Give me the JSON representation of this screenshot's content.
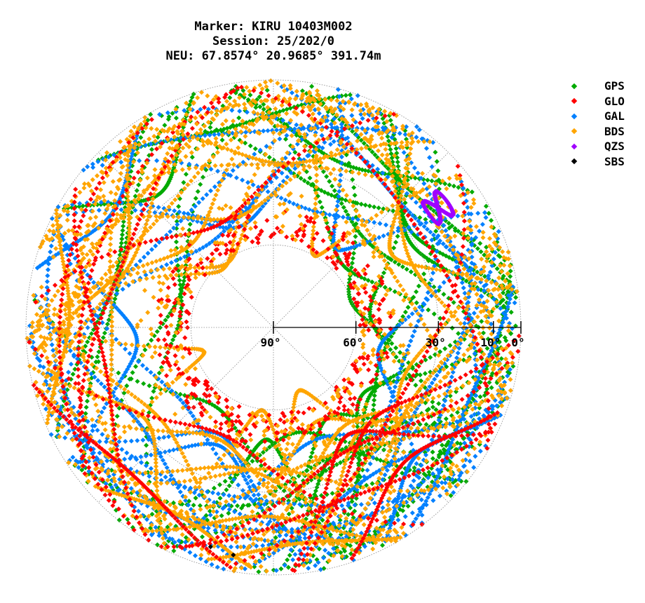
{
  "title_lines": [
    "Marker: KIRU 10403M002",
    "Session: 25/202/0",
    "NEU: 67.8574° 20.9685° 391.74m"
  ],
  "legend": [
    {
      "label": "GPS",
      "color": "#00aa00"
    },
    {
      "label": "GLO",
      "color": "#ff0000"
    },
    {
      "label": "GAL",
      "color": "#0080ff"
    },
    {
      "label": "BDS",
      "color": "#ffa500"
    },
    {
      "label": "QZS",
      "color": "#a000ff"
    },
    {
      "label": "SBS",
      "color": "#000000"
    }
  ],
  "chart_data": {
    "type": "scatter",
    "projection": "polar skyplot (azimuth/elevation)",
    "radial_axis": "elevation",
    "elevation_ticks": [
      {
        "value": 90,
        "label": "90°"
      },
      {
        "value": 60,
        "label": "60°"
      },
      {
        "value": 30,
        "label": "30°"
      },
      {
        "value": 10,
        "label": "10°"
      },
      {
        "value": 0,
        "label": "0°"
      }
    ],
    "grid_circles_elevation": [
      60,
      30,
      0
    ],
    "grid_radials_azimuth_deg": [
      0,
      45,
      90,
      135,
      180,
      225,
      270,
      315
    ],
    "legend_position": "top-right",
    "series": [
      {
        "name": "GPS",
        "color": "#00aa00",
        "description": "tracks covering elevation 0-60, all azimuths, denser south"
      },
      {
        "name": "GLO",
        "color": "#ff0000",
        "description": "dense ring near elevation 45-60 plus tracks"
      },
      {
        "name": "GAL",
        "color": "#0080ff",
        "description": "tracks elevation 0-55 all azimuths"
      },
      {
        "name": "BDS",
        "color": "#ffa500",
        "description": "dense arcs across sky, elevation 0-65"
      },
      {
        "name": "QZS",
        "color": "#a000ff",
        "description": "figure-8 cluster near azimuth 50-60, elevation 12-20"
      },
      {
        "name": "SBS",
        "color": "#000000",
        "description": "few isolated points near south horizon"
      }
    ]
  }
}
